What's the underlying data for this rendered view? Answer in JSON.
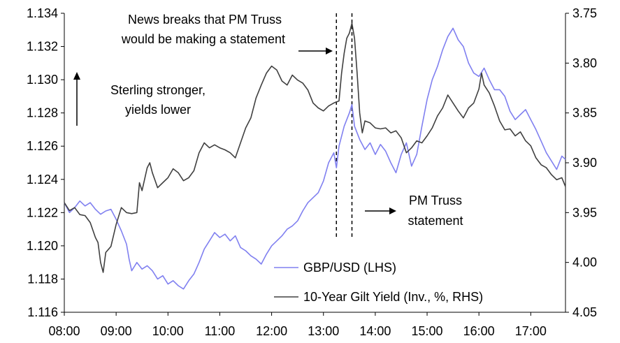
{
  "chart_data": {
    "type": "line",
    "x_ticks": [
      "08:00",
      "09:00",
      "10:00",
      "11:00",
      "12:00",
      "13:00",
      "14:00",
      "15:00",
      "16:00",
      "17:00"
    ],
    "x_range": [
      8.0,
      17.67
    ],
    "left_axis": {
      "ticks": [
        "1.116",
        "1.118",
        "1.120",
        "1.122",
        "1.124",
        "1.126",
        "1.128",
        "1.130",
        "1.132",
        "1.134"
      ],
      "range": [
        1.116,
        1.134
      ]
    },
    "right_axis": {
      "ticks": [
        "3.75",
        "3.80",
        "3.85",
        "3.90",
        "3.95",
        "4.00",
        "4.05"
      ],
      "range": [
        3.75,
        4.05
      ],
      "inverted": true
    },
    "series": [
      {
        "name": "GBP/USD (LHS)",
        "axis": "left",
        "color": "#8080f0",
        "points": [
          [
            8.0,
            1.1226
          ],
          [
            8.1,
            1.122
          ],
          [
            8.2,
            1.1223
          ],
          [
            8.3,
            1.1227
          ],
          [
            8.4,
            1.1224
          ],
          [
            8.5,
            1.1226
          ],
          [
            8.6,
            1.1222
          ],
          [
            8.7,
            1.1219
          ],
          [
            8.8,
            1.1221
          ],
          [
            8.9,
            1.1222
          ],
          [
            9.0,
            1.1216
          ],
          [
            9.1,
            1.1209
          ],
          [
            9.2,
            1.1201
          ],
          [
            9.25,
            1.1192
          ],
          [
            9.3,
            1.1185
          ],
          [
            9.4,
            1.119
          ],
          [
            9.5,
            1.1186
          ],
          [
            9.6,
            1.1188
          ],
          [
            9.7,
            1.1185
          ],
          [
            9.8,
            1.118
          ],
          [
            9.9,
            1.1182
          ],
          [
            10.0,
            1.1177
          ],
          [
            10.1,
            1.1179
          ],
          [
            10.2,
            1.1176
          ],
          [
            10.3,
            1.1174
          ],
          [
            10.4,
            1.1179
          ],
          [
            10.5,
            1.1183
          ],
          [
            10.6,
            1.119
          ],
          [
            10.7,
            1.1198
          ],
          [
            10.8,
            1.1203
          ],
          [
            10.9,
            1.1208
          ],
          [
            11.0,
            1.1205
          ],
          [
            11.1,
            1.1207
          ],
          [
            11.2,
            1.1203
          ],
          [
            11.3,
            1.1206
          ],
          [
            11.4,
            1.1199
          ],
          [
            11.5,
            1.1197
          ],
          [
            11.6,
            1.1194
          ],
          [
            11.7,
            1.1192
          ],
          [
            11.8,
            1.1189
          ],
          [
            11.9,
            1.1195
          ],
          [
            12.0,
            1.12
          ],
          [
            12.1,
            1.1203
          ],
          [
            12.2,
            1.1206
          ],
          [
            12.3,
            1.121
          ],
          [
            12.4,
            1.1212
          ],
          [
            12.5,
            1.1215
          ],
          [
            12.6,
            1.1221
          ],
          [
            12.7,
            1.1226
          ],
          [
            12.8,
            1.1229
          ],
          [
            12.9,
            1.1232
          ],
          [
            13.0,
            1.1239
          ],
          [
            13.1,
            1.125
          ],
          [
            13.2,
            1.1256
          ],
          [
            13.25,
            1.1247
          ],
          [
            13.3,
            1.126
          ],
          [
            13.4,
            1.1272
          ],
          [
            13.5,
            1.128
          ],
          [
            13.55,
            1.1285
          ],
          [
            13.6,
            1.1272
          ],
          [
            13.7,
            1.1264
          ],
          [
            13.8,
            1.1258
          ],
          [
            13.9,
            1.1262
          ],
          [
            14.0,
            1.1255
          ],
          [
            14.1,
            1.1261
          ],
          [
            14.2,
            1.1257
          ],
          [
            14.3,
            1.125
          ],
          [
            14.4,
            1.1244
          ],
          [
            14.5,
            1.1255
          ],
          [
            14.6,
            1.1262
          ],
          [
            14.7,
            1.1248
          ],
          [
            14.8,
            1.1255
          ],
          [
            14.9,
            1.1272
          ],
          [
            15.0,
            1.1288
          ],
          [
            15.1,
            1.13
          ],
          [
            15.2,
            1.1308
          ],
          [
            15.3,
            1.1318
          ],
          [
            15.4,
            1.1326
          ],
          [
            15.5,
            1.1331
          ],
          [
            15.6,
            1.1324
          ],
          [
            15.7,
            1.132
          ],
          [
            15.8,
            1.131
          ],
          [
            15.9,
            1.1304
          ],
          [
            16.0,
            1.1302
          ],
          [
            16.1,
            1.1307
          ],
          [
            16.2,
            1.13
          ],
          [
            16.3,
            1.1294
          ],
          [
            16.4,
            1.1294
          ],
          [
            16.5,
            1.129
          ],
          [
            16.6,
            1.1281
          ],
          [
            16.7,
            1.1276
          ],
          [
            16.8,
            1.1279
          ],
          [
            16.9,
            1.1282
          ],
          [
            17.0,
            1.1276
          ],
          [
            17.1,
            1.127
          ],
          [
            17.2,
            1.1263
          ],
          [
            17.3,
            1.1256
          ],
          [
            17.4,
            1.1251
          ],
          [
            17.5,
            1.1246
          ],
          [
            17.6,
            1.1254
          ],
          [
            17.67,
            1.1252
          ]
        ]
      },
      {
        "name": "10-Year Gilt Yield (Inv., %, RHS)",
        "axis": "right",
        "color": "#404040",
        "points": [
          [
            8.0,
            3.94
          ],
          [
            8.1,
            3.948
          ],
          [
            8.2,
            3.945
          ],
          [
            8.3,
            3.952
          ],
          [
            8.4,
            3.953
          ],
          [
            8.5,
            3.96
          ],
          [
            8.6,
            3.975
          ],
          [
            8.65,
            3.98
          ],
          [
            8.7,
            4.0
          ],
          [
            8.75,
            4.01
          ],
          [
            8.8,
            3.99
          ],
          [
            8.9,
            3.984
          ],
          [
            9.0,
            3.962
          ],
          [
            9.1,
            3.945
          ],
          [
            9.2,
            3.95
          ],
          [
            9.3,
            3.951
          ],
          [
            9.4,
            3.95
          ],
          [
            9.45,
            3.92
          ],
          [
            9.5,
            3.928
          ],
          [
            9.6,
            3.905
          ],
          [
            9.65,
            3.9
          ],
          [
            9.7,
            3.91
          ],
          [
            9.8,
            3.925
          ],
          [
            9.9,
            3.92
          ],
          [
            10.0,
            3.915
          ],
          [
            10.1,
            3.906
          ],
          [
            10.2,
            3.91
          ],
          [
            10.3,
            3.918
          ],
          [
            10.4,
            3.915
          ],
          [
            10.5,
            3.908
          ],
          [
            10.6,
            3.89
          ],
          [
            10.7,
            3.88
          ],
          [
            10.8,
            3.885
          ],
          [
            10.9,
            3.882
          ],
          [
            11.0,
            3.885
          ],
          [
            11.1,
            3.887
          ],
          [
            11.2,
            3.89
          ],
          [
            11.3,
            3.895
          ],
          [
            11.4,
            3.88
          ],
          [
            11.5,
            3.865
          ],
          [
            11.6,
            3.855
          ],
          [
            11.7,
            3.835
          ],
          [
            11.8,
            3.822
          ],
          [
            11.9,
            3.81
          ],
          [
            12.0,
            3.803
          ],
          [
            12.1,
            3.807
          ],
          [
            12.2,
            3.818
          ],
          [
            12.3,
            3.822
          ],
          [
            12.4,
            3.812
          ],
          [
            12.5,
            3.817
          ],
          [
            12.6,
            3.82
          ],
          [
            12.7,
            3.827
          ],
          [
            12.8,
            3.84
          ],
          [
            12.9,
            3.845
          ],
          [
            13.0,
            3.848
          ],
          [
            13.1,
            3.843
          ],
          [
            13.2,
            3.84
          ],
          [
            13.3,
            3.838
          ],
          [
            13.35,
            3.81
          ],
          [
            13.4,
            3.79
          ],
          [
            13.45,
            3.775
          ],
          [
            13.5,
            3.77
          ],
          [
            13.55,
            3.76
          ],
          [
            13.6,
            3.775
          ],
          [
            13.65,
            3.81
          ],
          [
            13.7,
            3.85
          ],
          [
            13.75,
            3.87
          ],
          [
            13.8,
            3.858
          ],
          [
            13.9,
            3.86
          ],
          [
            14.0,
            3.865
          ],
          [
            14.1,
            3.866
          ],
          [
            14.2,
            3.865
          ],
          [
            14.3,
            3.87
          ],
          [
            14.4,
            3.868
          ],
          [
            14.5,
            3.875
          ],
          [
            14.6,
            3.89
          ],
          [
            14.7,
            3.885
          ],
          [
            14.8,
            3.878
          ],
          [
            14.9,
            3.88
          ],
          [
            15.0,
            3.873
          ],
          [
            15.1,
            3.865
          ],
          [
            15.2,
            3.853
          ],
          [
            15.3,
            3.845
          ],
          [
            15.4,
            3.832
          ],
          [
            15.5,
            3.84
          ],
          [
            15.6,
            3.848
          ],
          [
            15.7,
            3.855
          ],
          [
            15.8,
            3.845
          ],
          [
            15.9,
            3.84
          ],
          [
            16.0,
            3.826
          ],
          [
            16.05,
            3.81
          ],
          [
            16.1,
            3.822
          ],
          [
            16.2,
            3.83
          ],
          [
            16.3,
            3.843
          ],
          [
            16.4,
            3.858
          ],
          [
            16.5,
            3.867
          ],
          [
            16.6,
            3.866
          ],
          [
            16.7,
            3.873
          ],
          [
            16.8,
            3.869
          ],
          [
            16.9,
            3.878
          ],
          [
            17.0,
            3.883
          ],
          [
            17.1,
            3.895
          ],
          [
            17.2,
            3.902
          ],
          [
            17.3,
            3.905
          ],
          [
            17.4,
            3.912
          ],
          [
            17.5,
            3.917
          ],
          [
            17.6,
            3.915
          ],
          [
            17.67,
            3.924
          ]
        ]
      }
    ],
    "vlines": [
      13.25,
      13.55
    ],
    "legend": {
      "placement": "bottom-center"
    }
  },
  "annotations": {
    "news_line1": "News breaks that PM Truss",
    "news_line2": "would be making a statement",
    "stronger_line1": "Sterling stronger,",
    "stronger_line2": "yields lower",
    "statement_line1": "PM Truss",
    "statement_line2": "statement"
  }
}
